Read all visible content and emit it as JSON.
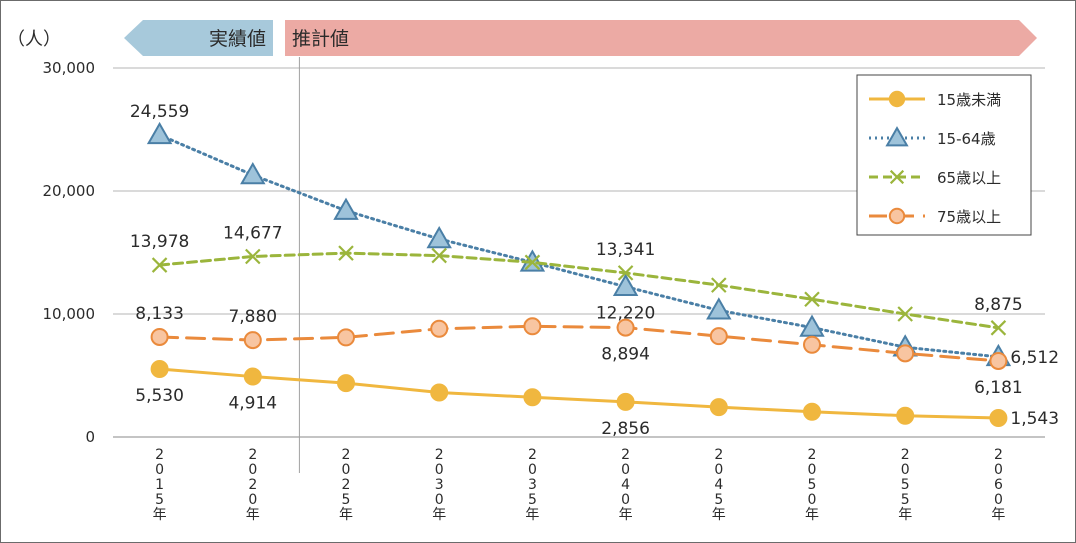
{
  "chart_data": {
    "type": "line",
    "unit_label": "（人）",
    "x": [
      "2015年",
      "2020年",
      "2025年",
      "2030年",
      "2035年",
      "2040年",
      "2045年",
      "2050年",
      "2055年",
      "2060年"
    ],
    "ylim": [
      0,
      30000
    ],
    "yticks": [
      "0",
      "10,000",
      "20,000",
      "30,000"
    ],
    "grid": true,
    "legend_position": "top-right",
    "period_banners": {
      "actual": "実績値",
      "projected": "推計値"
    },
    "series": [
      {
        "name": "15歳未満",
        "color": "#f0b73f",
        "marker": "circle",
        "line_style": "solid",
        "values": [
          5530,
          4914,
          4380,
          3620,
          3230,
          2856,
          2430,
          2050,
          1730,
          1543
        ],
        "labels": [
          {
            "index": 0,
            "text": "5,530",
            "pos": "below"
          },
          {
            "index": 1,
            "text": "4,914",
            "pos": "below"
          },
          {
            "index": 5,
            "text": "2,856",
            "pos": "below"
          },
          {
            "index": 9,
            "text": "1,543",
            "pos": "right"
          }
        ]
      },
      {
        "name": "15-64歳",
        "color": "#4a7fa6",
        "marker_fill": "#9ec3da",
        "marker": "triangle",
        "line_style": "dotted",
        "values": [
          24559,
          21300,
          18400,
          16100,
          14200,
          12220,
          10300,
          8900,
          7300,
          6512
        ],
        "labels": [
          {
            "index": 0,
            "text": "24,559",
            "pos": "above"
          },
          {
            "index": 5,
            "text": "12,220",
            "pos": "below"
          },
          {
            "index": 9,
            "text": "6,512",
            "pos": "right"
          }
        ]
      },
      {
        "name": "65歳以上",
        "color": "#9bb53c",
        "marker": "x",
        "line_style": "dashed",
        "values": [
          13978,
          14677,
          14950,
          14750,
          14200,
          13341,
          12350,
          11200,
          10000,
          8875
        ],
        "labels": [
          {
            "index": 0,
            "text": "13,978",
            "pos": "above"
          },
          {
            "index": 1,
            "text": "14,677",
            "pos": "above"
          },
          {
            "index": 5,
            "text": "13,341",
            "pos": "above"
          },
          {
            "index": 9,
            "text": "8,875",
            "pos": "above"
          }
        ]
      },
      {
        "name": "75歳以上",
        "color": "#ea8a3c",
        "marker_fill": "#f8c5a1",
        "marker": "circle",
        "line_style": "longdash",
        "values": [
          8133,
          7880,
          8100,
          8800,
          9000,
          8894,
          8200,
          7500,
          6800,
          6181
        ],
        "labels": [
          {
            "index": 0,
            "text": "8,133",
            "pos": "above"
          },
          {
            "index": 1,
            "text": "7,880",
            "pos": "above"
          },
          {
            "index": 5,
            "text": "8,894",
            "pos": "below"
          },
          {
            "index": 9,
            "text": "6,181",
            "pos": "below"
          }
        ]
      }
    ]
  }
}
